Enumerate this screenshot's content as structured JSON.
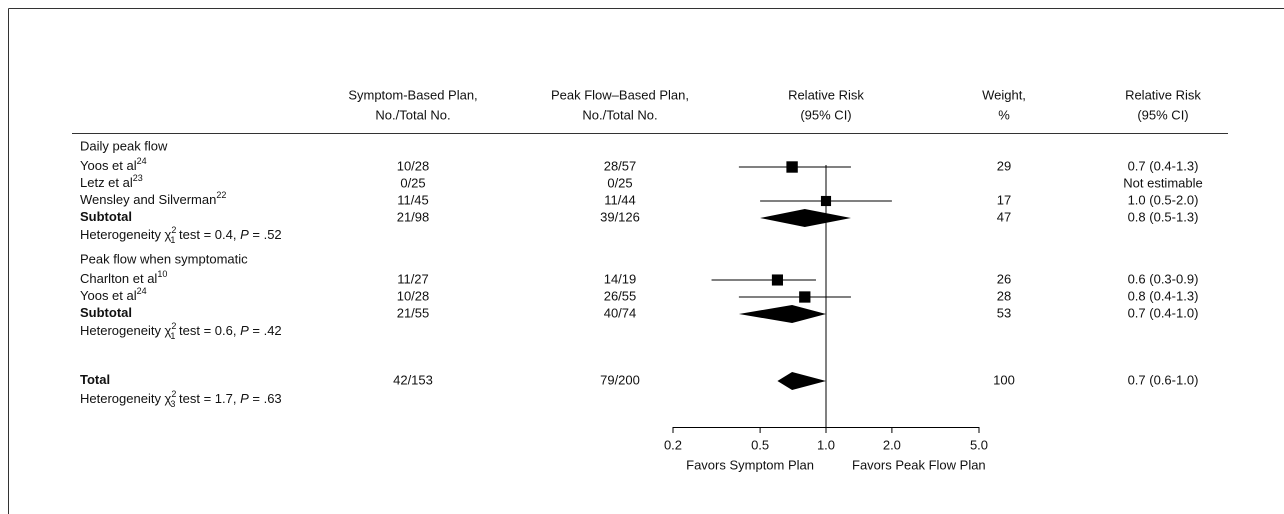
{
  "chart_data": {
    "type": "forest",
    "headers": {
      "symptom": [
        "Symptom-Based Plan,",
        "No./Total No."
      ],
      "peak": [
        "Peak Flow–Based Plan,",
        "No./Total No."
      ],
      "plot": [
        "Relative Risk",
        "(95% CI)"
      ],
      "weight": [
        "Weight,",
        "%"
      ],
      "rr": [
        "Relative Risk",
        "(95% CI)"
      ]
    },
    "groups": [
      {
        "name": "Daily peak flow",
        "studies": [
          {
            "name": "Yoos et al",
            "ref": "24",
            "symptom": "10/28",
            "peak": "28/57",
            "rr": 0.7,
            "ci": [
              0.4,
              1.3
            ],
            "weight": 29,
            "rr_label": "0.7 (0.4-1.3)"
          },
          {
            "name": "Letz et al",
            "ref": "23",
            "symptom": "0/25",
            "peak": "0/25",
            "rr_label": "Not estimable"
          },
          {
            "name": "Wensley and Silverman",
            "ref": "22",
            "symptom": "11/45",
            "peak": "11/44",
            "rr": 1.0,
            "ci": [
              0.5,
              2.0
            ],
            "weight": 17,
            "rr_label": "1.0 (0.5-2.0)"
          }
        ],
        "subtotal": {
          "name": "Subtotal",
          "symptom": "21/98",
          "peak": "39/126",
          "rr": 0.8,
          "ci": [
            0.5,
            1.3
          ],
          "weight": 47,
          "rr_label": "0.8 (0.5-1.3)"
        },
        "heterogeneity": {
          "prefix": "Heterogeneity χ",
          "sup": "2",
          "sub": "1",
          "stat": " test = 0.4, ",
          "p": "P",
          "p_value": " = .52"
        }
      },
      {
        "name": "Peak flow when symptomatic",
        "studies": [
          {
            "name": "Charlton et al",
            "ref": "10",
            "symptom": "11/27",
            "peak": "14/19",
            "rr": 0.6,
            "ci": [
              0.3,
              0.9
            ],
            "weight": 26,
            "rr_label": "0.6 (0.3-0.9)"
          },
          {
            "name": "Yoos et al",
            "ref": "24",
            "symptom": "10/28",
            "peak": "26/55",
            "rr": 0.8,
            "ci": [
              0.4,
              1.3
            ],
            "weight": 28,
            "rr_label": "0.8 (0.4-1.3)"
          }
        ],
        "subtotal": {
          "name": "Subtotal",
          "symptom": "21/55",
          "peak": "40/74",
          "rr": 0.7,
          "ci": [
            0.4,
            1.0
          ],
          "weight": 53,
          "rr_label": "0.7 (0.4-1.0)"
        },
        "heterogeneity": {
          "prefix": "Heterogeneity χ",
          "sup": "2",
          "sub": "1",
          "stat": " test = 0.6, ",
          "p": "P",
          "p_value": " = .42"
        }
      }
    ],
    "total": {
      "name": "Total",
      "symptom": "42/153",
      "peak": "79/200",
      "rr": 0.7,
      "ci": [
        0.6,
        1.0
      ],
      "weight": 100,
      "rr_label": "0.7 (0.6-1.0)",
      "heterogeneity": {
        "prefix": "Heterogeneity χ",
        "sup": "2",
        "sub": "3",
        "stat": " test = 1.7, ",
        "p": "P",
        "p_value": " = .63"
      }
    },
    "xlim": [
      0.2,
      5
    ],
    "xticks": [
      0.2,
      0.5,
      {
        "value": 1,
        "label": "1.0"
      },
      {
        "value": 2,
        "label": "2.0"
      },
      {
        "value": 5,
        "label": "5.0"
      }
    ],
    "log_x": true,
    "reference_line": 1,
    "favors": [
      "Favors Symptom Plan",
      "Favors Peak Flow Plan"
    ],
    "color": "#000000"
  }
}
